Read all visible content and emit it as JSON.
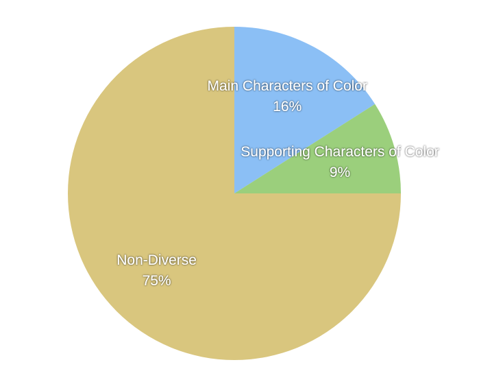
{
  "chart_data": {
    "type": "pie",
    "categories": [
      "Main Characters of Color",
      "Supporting Characters of Color",
      "Non-Diverse"
    ],
    "values": [
      16,
      9,
      75
    ],
    "value_labels": [
      "16%",
      "9%",
      "75%"
    ],
    "colors": [
      "#8bbff5",
      "#9bcf7c",
      "#d9c67e"
    ]
  }
}
